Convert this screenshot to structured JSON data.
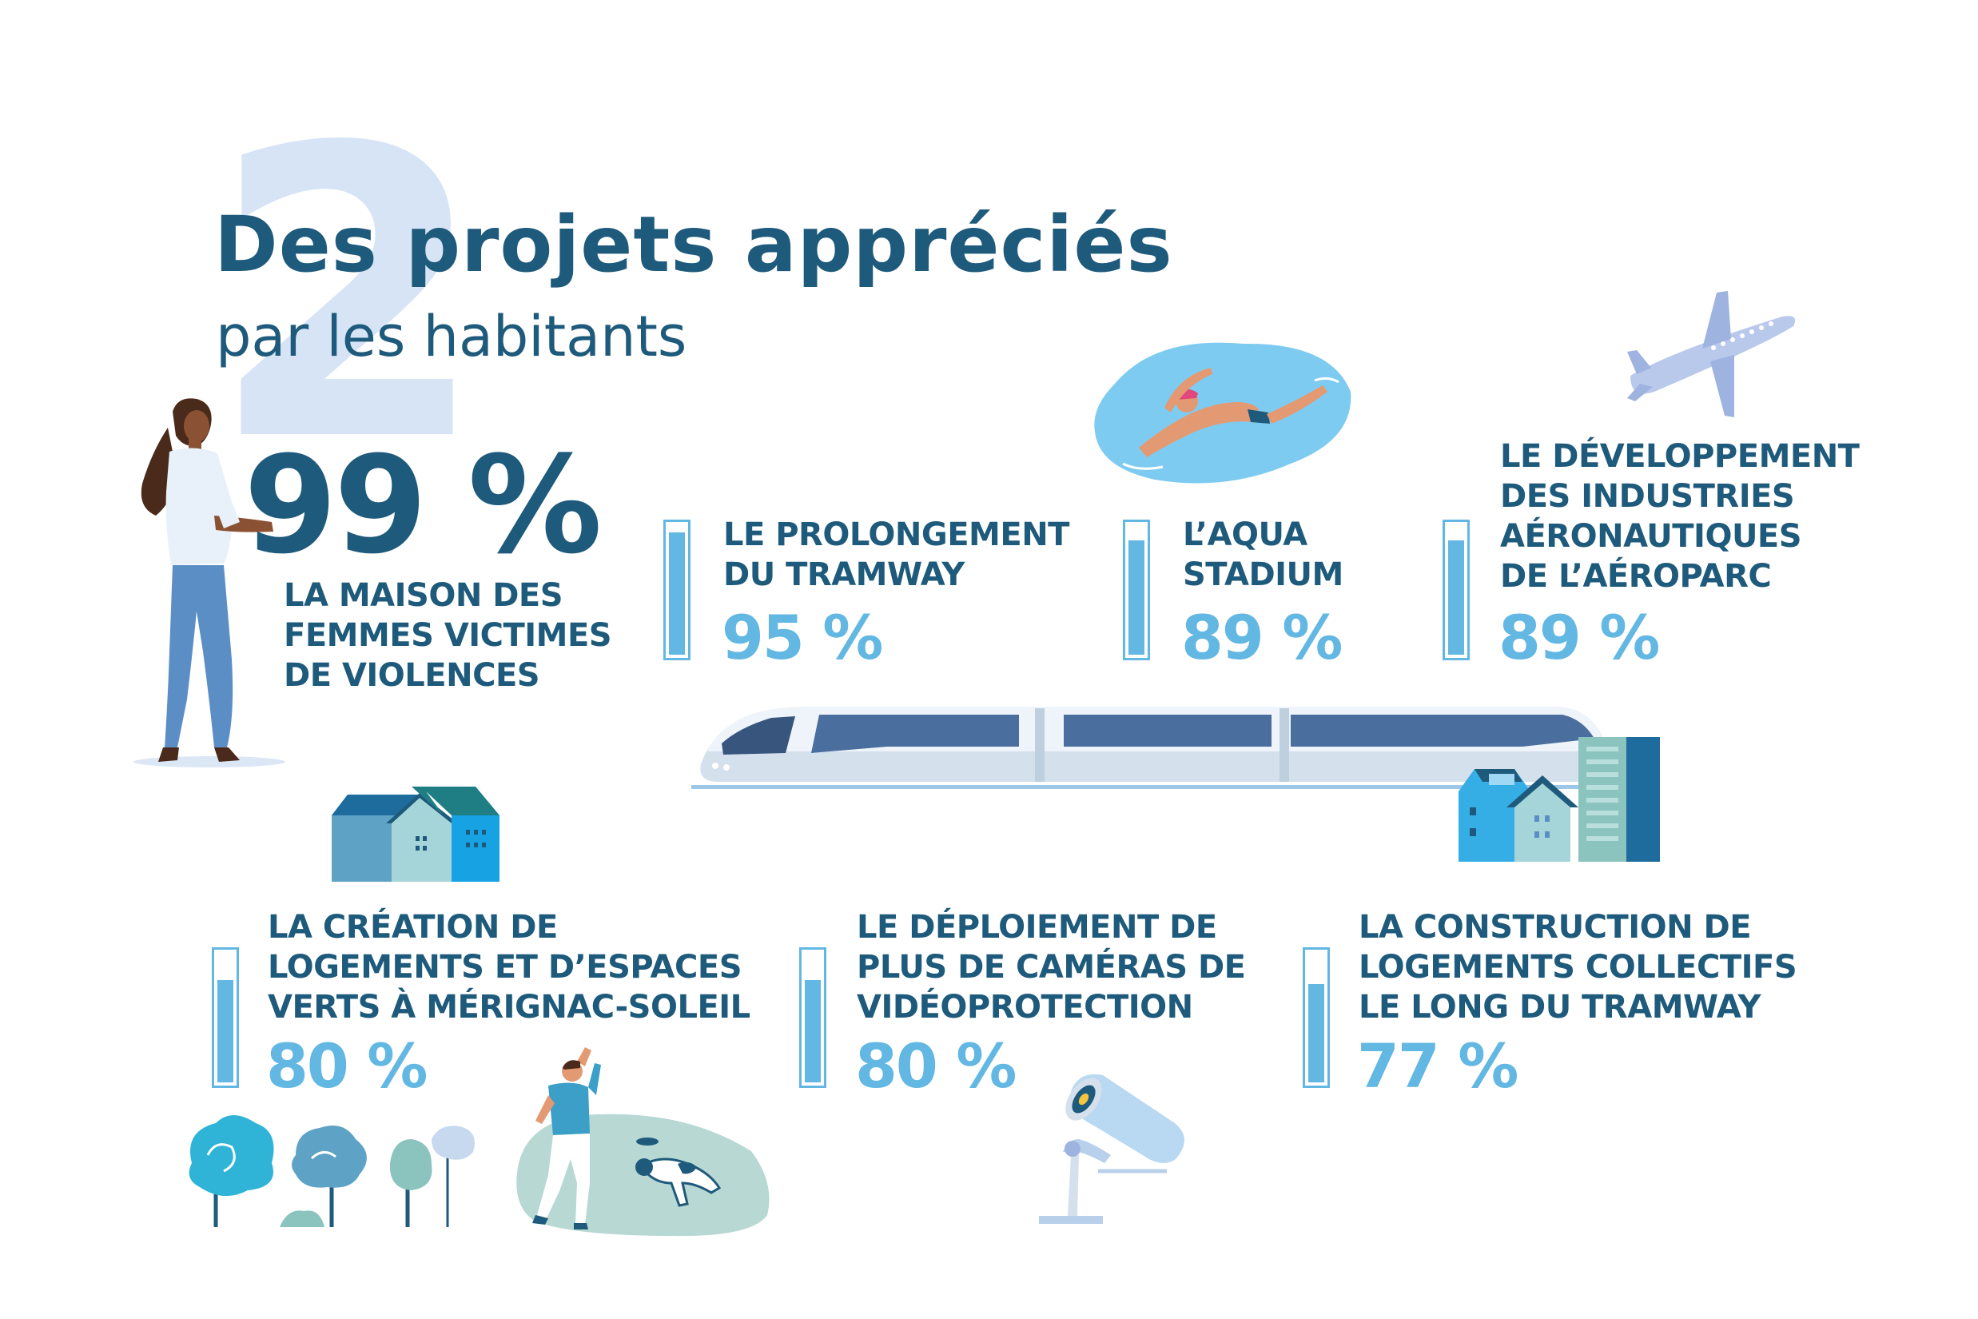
{
  "heading": {
    "number": "2",
    "title": "Des projets appréciés",
    "subtitle": "par les habitants"
  },
  "colors": {
    "dark_blue": "#1e5a7b",
    "light_blue": "#62b7e3",
    "pale_blue": "#d6e4f6"
  },
  "stats": [
    {
      "label": "LA MAISON DES\nFEMMES VICTIMES\nDE VIOLENCES",
      "percent": "99 %",
      "value": 99
    },
    {
      "label": "LE PROLONGEMENT\nDU TRAMWAY",
      "percent": "95 %",
      "value": 95
    },
    {
      "label": "L’AQUA\nSTADIUM",
      "percent": "89 %",
      "value": 89
    },
    {
      "label": "LE DÉVELOPPEMENT\nDES INDUSTRIES\nAÉRONAUTIQUES\nDE L’AÉROPARC",
      "percent": "89 %",
      "value": 89
    },
    {
      "label": "LA CRÉATION DE\nLOGEMENTS ET D’ESPACES\nVERTS À MÉRIGNAC-SOLEIL",
      "percent": "80 %",
      "value": 80
    },
    {
      "label": "LE DÉPLOIEMENT DE\nPLUS DE CAMÉRAS DE\nVIDÉOPROTECTION",
      "percent": "80 %",
      "value": 80
    },
    {
      "label": "LA CONSTRUCTION DE\nLOGEMENTS COLLECTIFS\nLE LONG DU TRAMWAY",
      "percent": "77 %",
      "value": 77
    }
  ],
  "icons": [
    "woman-illustration",
    "swimmer-illustration",
    "airplane-illustration",
    "tram-illustration",
    "buildings-illustration",
    "houses-illustration",
    "trees-illustration",
    "man-with-dog-illustration",
    "camera-illustration"
  ]
}
